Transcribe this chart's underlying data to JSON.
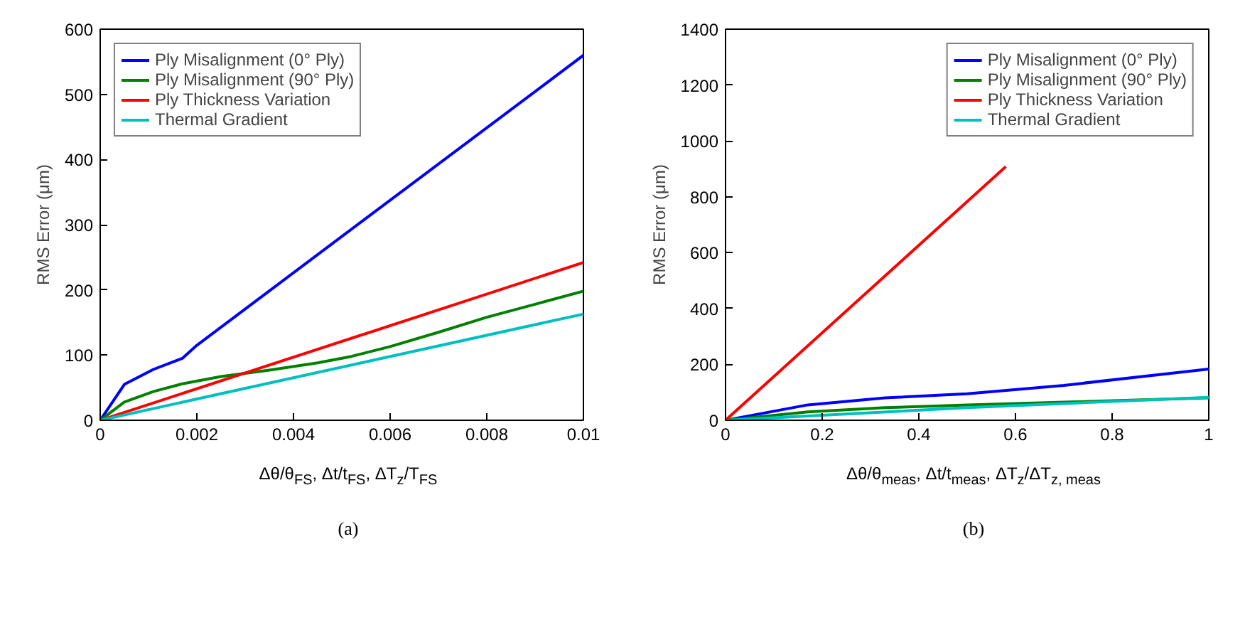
{
  "chart_data": [
    {
      "type": "line",
      "xlabel": "Δθ/θ$_{FS}$,  Δt/t$_{FS}$,  ΔT$_{z}$/T$_{FS}$",
      "ylabel": "RMS Error (μm)",
      "annotations": [
        "(a)"
      ],
      "xlim": [
        0,
        0.01
      ],
      "xticks": [
        0,
        0.002,
        0.004,
        0.006,
        0.008,
        0.01
      ],
      "ylim": [
        0,
        600
      ],
      "yticks": [
        0,
        100,
        200,
        300,
        400,
        500,
        600
      ],
      "grid": false,
      "legend": "top left",
      "line_style": "solid",
      "series": [
        {
          "name": "Ply Misalignment (0° Ply)",
          "color": "#0000ff",
          "x": [
            0,
            0.0005,
            0.0011,
            0.0017,
            0.002,
            0.01
          ],
          "values": [
            0,
            55,
            78,
            95,
            115,
            560
          ]
        },
        {
          "name": "Ply Misalignment (90° Ply)",
          "color": "#008000",
          "x": [
            0,
            0.0005,
            0.0011,
            0.0017,
            0.0025,
            0.0035,
            0.0045,
            0.0052,
            0.006,
            0.007,
            0.008,
            0.009,
            0.01
          ],
          "values": [
            0,
            28,
            44,
            56,
            67,
            77,
            88,
            98,
            113,
            135,
            158,
            178,
            198
          ]
        },
        {
          "name": "Ply Thickness Variation",
          "color": "#ff0000",
          "x": [
            0,
            0.01
          ],
          "values": [
            0,
            242
          ]
        },
        {
          "name": "Thermal Gradient",
          "color": "#00bfbf",
          "x": [
            0,
            0.01
          ],
          "values": [
            0,
            163
          ]
        }
      ]
    },
    {
      "type": "line",
      "xlabel": "Δθ/θ$_{meas}$,  Δt/t$_{meas}$,  ΔT$_{z}$/ΔT$_{z, meas}$",
      "ylabel": "RMS Error (μm)",
      "annotations": [
        "(b)"
      ],
      "xlim": [
        0,
        1
      ],
      "xticks": [
        0,
        0.2,
        0.4,
        0.6,
        0.8,
        1
      ],
      "ylim": [
        0,
        1400
      ],
      "yticks": [
        0,
        200,
        400,
        600,
        800,
        1000,
        1200,
        1400
      ],
      "grid": false,
      "legend": "top right",
      "line_style": "solid",
      "series": [
        {
          "name": "Ply Misalignment (0° Ply)",
          "color": "#0000ff",
          "x": [
            0,
            0.17,
            0.33,
            0.5,
            0.7,
            1
          ],
          "values": [
            0,
            55,
            80,
            95,
            125,
            183
          ]
        },
        {
          "name": "Ply Misalignment (90° Ply)",
          "color": "#008000",
          "x": [
            0,
            0.17,
            0.33,
            0.5,
            0.7,
            1
          ],
          "values": [
            0,
            30,
            45,
            55,
            65,
            80
          ]
        },
        {
          "name": "Ply Thickness Variation",
          "color": "#ff0000",
          "x": [
            0,
            0.58
          ],
          "values": [
            0,
            908
          ]
        },
        {
          "name": "Thermal Gradient",
          "color": "#00bfbf",
          "x": [
            0,
            0.17,
            0.5,
            1
          ],
          "values": [
            0,
            15,
            45,
            82
          ]
        }
      ]
    }
  ]
}
